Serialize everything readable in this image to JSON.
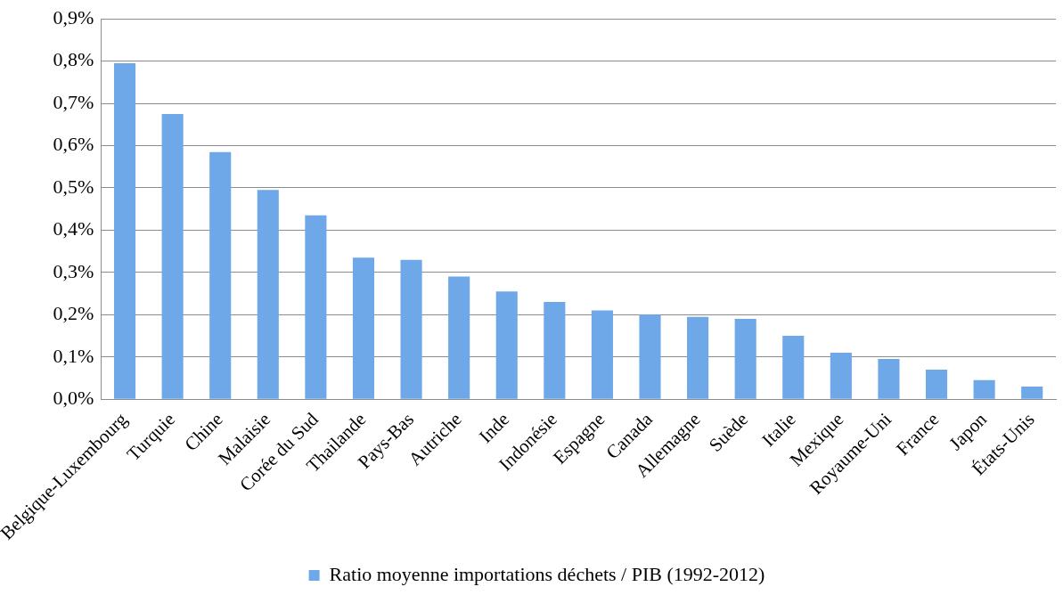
{
  "chart_data": {
    "type": "bar",
    "categories": [
      "Belgique-Luxembourg",
      "Turquie",
      "Chine",
      "Malaisie",
      "Corée du Sud",
      "Thailande",
      "Pays-Bas",
      "Autriche",
      "Inde",
      "Indonésie",
      "Espagne",
      "Canada",
      "Allemagne",
      "Suède",
      "Italie",
      "Mexique",
      "Royaume-Uni",
      "France",
      "Japon",
      "États-Unis"
    ],
    "series": [
      {
        "name": "Ratio moyenne importations déchets / PIB (1992-2012)",
        "color": "#6fa8e8",
        "values": [
          0.795,
          0.675,
          0.585,
          0.495,
          0.435,
          0.335,
          0.33,
          0.29,
          0.255,
          0.23,
          0.21,
          0.2,
          0.195,
          0.19,
          0.15,
          0.11,
          0.095,
          0.07,
          0.045,
          0.03
        ]
      }
    ],
    "ylim": [
      0,
      0.9
    ],
    "yticks": [
      {
        "value": 0,
        "label": "0,0%"
      },
      {
        "value": 0.1,
        "label": "0,1%"
      },
      {
        "value": 0.2,
        "label": "0,2%"
      },
      {
        "value": 0.3,
        "label": "0,3%"
      },
      {
        "value": 0.4,
        "label": "0,4%"
      },
      {
        "value": 0.5,
        "label": "0,5%"
      },
      {
        "value": 0.6,
        "label": "0,6%"
      },
      {
        "value": 0.7,
        "label": "0,7%"
      },
      {
        "value": 0.8,
        "label": "0,8%"
      },
      {
        "value": 0.9,
        "label": "0,9%"
      }
    ],
    "grid": "y",
    "legend": "bottom"
  }
}
